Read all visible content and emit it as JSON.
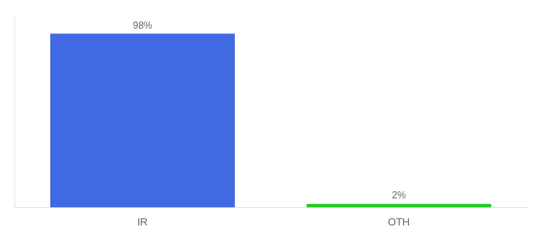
{
  "chart_data": {
    "type": "bar",
    "categories": [
      "IR",
      "OTH"
    ],
    "values": [
      98,
      2
    ],
    "value_labels": [
      "98%",
      "2%"
    ],
    "colors": [
      "#4169e1",
      "#22cc22"
    ],
    "ylim": [
      0,
      108
    ],
    "grid": false,
    "data_labels": true,
    "tick_labels": "x"
  }
}
